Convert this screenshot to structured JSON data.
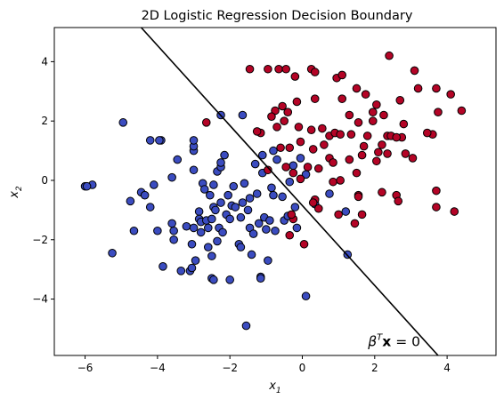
{
  "chart_data": {
    "type": "scatter",
    "title": "2D Logistic Regression Decision Boundary",
    "xlabel": {
      "base": "x",
      "sub": "1"
    },
    "ylabel": {
      "base": "x",
      "sub": "2"
    },
    "xlim": [
      -6.85,
      5.35
    ],
    "ylim": [
      -5.9,
      5.15
    ],
    "xticks": [
      -6,
      -4,
      -2,
      0,
      2,
      4
    ],
    "yticks": [
      -4,
      -2,
      0,
      2,
      4
    ],
    "xtick_labels": [
      "−6",
      "−4",
      "−2",
      "0",
      "2",
      "4"
    ],
    "ytick_labels": [
      "−4",
      "−2",
      "0",
      "2",
      "4"
    ],
    "grid": false,
    "decision_boundary": {
      "points": [
        [
          -4.45,
          5.15
        ],
        [
          3.75,
          -5.9
        ]
      ],
      "color": "#000000"
    },
    "annotation": {
      "text_beta": "β",
      "text_sup": "T",
      "text_x": "x",
      "text_eq": " = 0",
      "at": [
        2.7,
        -5.4
      ]
    },
    "marker_edge_color": "#000000",
    "series": [
      {
        "color": "#3b4cc0",
        "points": [
          [
            -5.8,
            -0.15
          ],
          [
            -5.25,
            -2.45
          ],
          [
            -4.75,
            -0.7
          ],
          [
            -4.65,
            -1.7
          ],
          [
            -4.45,
            -0.4
          ],
          [
            -4.35,
            -0.5
          ],
          [
            -4.2,
            -0.9
          ],
          [
            -4.1,
            -0.15
          ],
          [
            -4.0,
            -1.7
          ],
          [
            -3.85,
            -2.9
          ],
          [
            -3.9,
            1.35
          ],
          [
            -3.6,
            -1.45
          ],
          [
            -3.55,
            -1.7
          ],
          [
            -3.55,
            -2.0
          ],
          [
            -3.6,
            0.1
          ],
          [
            -3.45,
            0.7
          ],
          [
            -3.35,
            -3.05
          ],
          [
            -3.2,
            -1.55
          ],
          [
            -3.1,
            -3.05
          ],
          [
            -3.05,
            -2.95
          ],
          [
            -3.0,
            -1.6
          ],
          [
            -3.05,
            -2.15
          ],
          [
            -3.0,
            0.35
          ],
          [
            -3.0,
            1.0
          ],
          [
            -3.0,
            1.15
          ],
          [
            -3.0,
            1.35
          ],
          [
            -2.95,
            -2.7
          ],
          [
            -2.85,
            -1.05
          ],
          [
            -2.85,
            -1.3
          ],
          [
            -2.8,
            -1.4
          ],
          [
            -2.8,
            -1.75
          ],
          [
            -2.75,
            -0.1
          ],
          [
            -2.7,
            -0.3
          ],
          [
            -2.65,
            -1.35
          ],
          [
            -2.6,
            -1.6
          ],
          [
            -2.6,
            -2.25
          ],
          [
            -2.55,
            -0.5
          ],
          [
            -2.5,
            -1.3
          ],
          [
            -2.5,
            -2.55
          ],
          [
            -2.5,
            -3.3
          ],
          [
            -2.45,
            -0.15
          ],
          [
            -2.45,
            -0.9
          ],
          [
            -2.45,
            -3.35
          ],
          [
            -2.4,
            -1.0
          ],
          [
            -2.35,
            -2.05
          ],
          [
            -2.35,
            0.3
          ],
          [
            -2.3,
            -1.6
          ],
          [
            -2.25,
            -0.75
          ],
          [
            -2.25,
            0.45
          ],
          [
            -2.25,
            0.6
          ],
          [
            -2.2,
            -1.75
          ],
          [
            -2.15,
            0.85
          ],
          [
            -2.1,
            -1.15
          ],
          [
            -2.05,
            -0.5
          ],
          [
            -2.0,
            -1.3
          ],
          [
            -2.0,
            -3.35
          ],
          [
            -1.95,
            -0.85
          ],
          [
            -1.9,
            -0.2
          ],
          [
            -1.85,
            -0.9
          ],
          [
            -1.75,
            -2.15
          ],
          [
            -1.7,
            -2.25
          ],
          [
            -1.7,
            -1.25
          ],
          [
            -1.65,
            -0.75
          ],
          [
            -1.6,
            -0.1
          ],
          [
            -1.55,
            -4.9
          ],
          [
            -1.5,
            -1.0
          ],
          [
            -1.45,
            -0.6
          ],
          [
            -1.45,
            -1.6
          ],
          [
            -1.4,
            -2.5
          ],
          [
            -1.35,
            -1.8
          ],
          [
            -1.3,
            0.55
          ],
          [
            -1.25,
            -0.45
          ],
          [
            -1.2,
            -1.45
          ],
          [
            -1.15,
            -3.25
          ],
          [
            -1.15,
            -3.3
          ],
          [
            -1.1,
            0.25
          ],
          [
            -1.1,
            0.85
          ],
          [
            -1.05,
            -1.25
          ],
          [
            -1.0,
            -1.65
          ],
          [
            -0.95,
            -2.7
          ],
          [
            -0.9,
            -1.35
          ],
          [
            -0.85,
            -0.25
          ],
          [
            -0.8,
            -0.5
          ],
          [
            -0.75,
            -1.7
          ],
          [
            -0.7,
            0.7
          ],
          [
            -0.55,
            -0.55
          ],
          [
            -0.5,
            -1.35
          ],
          [
            -0.4,
            -1.2
          ],
          [
            -0.35,
            -0.05
          ],
          [
            -0.25,
            0.5
          ],
          [
            -0.2,
            -0.9
          ],
          [
            -0.15,
            -1.6
          ],
          [
            -0.05,
            0.75
          ],
          [
            0.1,
            0.2
          ],
          [
            0.1,
            -3.9
          ],
          [
            0.35,
            -0.8
          ],
          [
            0.75,
            -0.45
          ],
          [
            1.2,
            -1.05
          ],
          [
            1.25,
            -2.5
          ],
          [
            -1.65,
            2.2
          ],
          [
            -0.8,
            1.0
          ],
          [
            -3.95,
            1.35
          ],
          [
            -4.2,
            1.35
          ],
          [
            -6.0,
            -0.2
          ],
          [
            -5.95,
            -0.2
          ],
          [
            -2.25,
            2.2
          ],
          [
            -4.95,
            1.95
          ]
        ]
      },
      {
        "color": "#b40426",
        "points": [
          [
            -1.45,
            3.75
          ],
          [
            -0.95,
            3.75
          ],
          [
            -0.65,
            3.75
          ],
          [
            -0.45,
            3.75
          ],
          [
            0.25,
            3.75
          ],
          [
            0.35,
            3.65
          ],
          [
            -0.2,
            3.5
          ],
          [
            0.95,
            3.45
          ],
          [
            1.1,
            3.55
          ],
          [
            2.4,
            4.2
          ],
          [
            3.1,
            3.7
          ],
          [
            3.2,
            3.1
          ],
          [
            1.5,
            3.1
          ],
          [
            1.75,
            2.9
          ],
          [
            3.7,
            3.1
          ],
          [
            4.1,
            2.9
          ],
          [
            4.4,
            2.35
          ],
          [
            2.7,
            2.7
          ],
          [
            2.05,
            2.55
          ],
          [
            1.1,
            2.75
          ],
          [
            0.35,
            2.75
          ],
          [
            -0.15,
            2.65
          ],
          [
            -0.55,
            2.5
          ],
          [
            -0.4,
            2.3
          ],
          [
            -0.75,
            2.35
          ],
          [
            -0.85,
            2.15
          ],
          [
            -0.7,
            1.8
          ],
          [
            -0.5,
            2.0
          ],
          [
            -0.1,
            1.8
          ],
          [
            0.25,
            1.7
          ],
          [
            0.55,
            1.75
          ],
          [
            0.75,
            1.5
          ],
          [
            1.3,
            2.2
          ],
          [
            1.55,
            1.95
          ],
          [
            1.95,
            2.3
          ],
          [
            2.25,
            2.2
          ],
          [
            2.35,
            1.5
          ],
          [
            2.2,
            1.2
          ],
          [
            1.8,
            1.5
          ],
          [
            1.7,
            1.15
          ],
          [
            1.35,
            1.55
          ],
          [
            0.9,
            1.6
          ],
          [
            1.05,
            1.55
          ],
          [
            1.65,
            0.85
          ],
          [
            1.5,
            0.25
          ],
          [
            2.1,
            0.95
          ],
          [
            2.45,
            1.5
          ],
          [
            2.75,
            1.45
          ],
          [
            2.35,
            0.9
          ],
          [
            3.05,
            0.75
          ],
          [
            3.6,
            1.55
          ],
          [
            3.75,
            2.3
          ],
          [
            4.2,
            -1.05
          ],
          [
            3.7,
            -0.35
          ],
          [
            3.7,
            -0.9
          ],
          [
            2.6,
            -0.5
          ],
          [
            2.65,
            -0.7
          ],
          [
            2.2,
            -0.4
          ],
          [
            1.55,
            -0.5
          ],
          [
            1.55,
            -0.55
          ],
          [
            1.65,
            -1.15
          ],
          [
            1.45,
            -1.45
          ],
          [
            1.0,
            -1.15
          ],
          [
            0.75,
            0.75
          ],
          [
            0.45,
            0.4
          ],
          [
            0.15,
            0.45
          ],
          [
            -0.05,
            0.05
          ],
          [
            -0.25,
            0.25
          ],
          [
            -0.45,
            0.45
          ],
          [
            -0.6,
            1.1
          ],
          [
            -0.35,
            1.1
          ],
          [
            -0.05,
            1.3
          ],
          [
            0.3,
            1.05
          ],
          [
            0.6,
            1.2
          ],
          [
            0.85,
            0.6
          ],
          [
            1.3,
            0.7
          ],
          [
            0.45,
            -0.95
          ],
          [
            0.35,
            -0.65
          ],
          [
            -0.25,
            -1.3
          ],
          [
            -0.35,
            -1.85
          ],
          [
            0.05,
            -2.15
          ],
          [
            -1.15,
            1.6
          ],
          [
            -1.25,
            1.65
          ],
          [
            -0.95,
            0.35
          ],
          [
            -2.65,
            1.95
          ],
          [
            -0.3,
            -1.15
          ],
          [
            0.3,
            -0.75
          ],
          [
            0.85,
            -0.05
          ],
          [
            1.95,
            2.0
          ],
          [
            2.85,
            0.9
          ],
          [
            2.05,
            0.65
          ],
          [
            1.05,
            0.0
          ],
          [
            2.8,
            1.9
          ],
          [
            2.6,
            1.45
          ],
          [
            3.45,
            1.6
          ]
        ]
      }
    ]
  }
}
